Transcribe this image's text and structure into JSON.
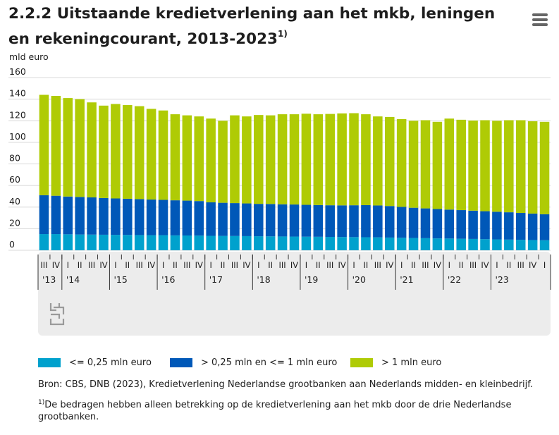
{
  "title": {
    "text": "2.2.2 Uitstaande kredietverlening aan het mkb, leningen en rekeningcourant, 2013-2023",
    "sup": "1)"
  },
  "menu_icon": "hamburger-menu-icon",
  "colors": {
    "small": "#00a1cd",
    "medium": "#0058b8",
    "large": "#afcb05",
    "grid": "#d8d8d8",
    "axis_band": "#ececec"
  },
  "chart_data": {
    "type": "bar",
    "stacked": true,
    "ylabel": "mld euro",
    "ylim": [
      0,
      160
    ],
    "yticks": [
      0,
      20,
      40,
      60,
      80,
      100,
      120,
      140,
      160
    ],
    "grid": true,
    "legend_position": "bottom",
    "categories": [
      "III",
      "IV",
      "I",
      "II",
      "III",
      "IV",
      "I",
      "II",
      "III",
      "IV",
      "I",
      "II",
      "III",
      "IV",
      "I",
      "II",
      "III",
      "IV",
      "I",
      "II",
      "III",
      "IV",
      "I",
      "II",
      "III",
      "IV",
      "I",
      "II",
      "III",
      "IV",
      "I",
      "II",
      "III",
      "IV",
      "I",
      "II",
      "III",
      "IV",
      "I",
      "II",
      "III",
      "IV",
      "I"
    ],
    "year_labels": [
      {
        "label": "'13",
        "quarters": 2
      },
      {
        "label": "'14",
        "quarters": 4
      },
      {
        "label": "'15",
        "quarters": 4
      },
      {
        "label": "'16",
        "quarters": 4
      },
      {
        "label": "'17",
        "quarters": 4
      },
      {
        "label": "'18",
        "quarters": 4
      },
      {
        "label": "'19",
        "quarters": 4
      },
      {
        "label": "'20",
        "quarters": 4
      },
      {
        "label": "'21",
        "quarters": 4
      },
      {
        "label": "'22",
        "quarters": 4
      },
      {
        "label": "'23",
        "quarters": 1
      }
    ],
    "series": [
      {
        "name": "<= 0,25 mln euro",
        "color_key": "small",
        "values": [
          15,
          15,
          14.8,
          14.6,
          14.5,
          14.4,
          14.3,
          14.2,
          14.1,
          14,
          14,
          13.8,
          13.7,
          13.6,
          13.4,
          13.3,
          13.2,
          13.1,
          13,
          12.9,
          12.8,
          12.7,
          12.6,
          12.5,
          12.4,
          12.3,
          12.2,
          12.1,
          12,
          11.8,
          11.6,
          11.4,
          11.2,
          11,
          10.9,
          10.7,
          10.5,
          10.3,
          10.1,
          9.9,
          9.7,
          9.5,
          9.3
        ]
      },
      {
        "name": "> 0,25 mln en <= 1 mln euro",
        "color_key": "medium",
        "values": [
          36,
          35.5,
          35,
          34.8,
          34.5,
          34,
          33.7,
          33.5,
          33.3,
          33,
          32.7,
          32.5,
          32.3,
          32,
          31,
          30.7,
          30.5,
          30.3,
          30,
          30,
          29.8,
          29.7,
          29.5,
          29.4,
          29.3,
          29.3,
          29.5,
          29.7,
          29.5,
          29.2,
          28.6,
          28,
          27.6,
          27.2,
          26.8,
          26.5,
          26.2,
          25.9,
          25.6,
          25.3,
          24.9,
          24.5,
          24.1
        ]
      },
      {
        "name": "> 1 mln euro",
        "color_key": "large",
        "values": [
          93,
          92.5,
          91.2,
          90.6,
          88,
          85.6,
          87.5,
          86.8,
          86.1,
          84,
          82.8,
          79.7,
          79,
          78.4,
          77.6,
          76,
          81.3,
          80.6,
          82.3,
          82.1,
          83.4,
          83.6,
          84.4,
          84.1,
          84.6,
          85.2,
          85.3,
          84.2,
          82.5,
          82.5,
          81.3,
          80.6,
          81.7,
          80.8,
          84.3,
          83.7,
          83.5,
          84.3,
          84.3,
          85.3,
          85.9,
          85.5,
          85.6
        ]
      }
    ]
  },
  "legend": [
    {
      "label": "<= 0,25 mln euro",
      "color_key": "small"
    },
    {
      "label": "> 0,25 mln en <= 1 mln euro",
      "color_key": "medium"
    },
    {
      "label": "> 1 mln euro",
      "color_key": "large"
    }
  ],
  "source": "Bron: CBS, DNB (2023), Kredietverlening Nederlandse grootbanken aan Nederlands midden- en kleinbedrijf.",
  "footnote": {
    "sup": "1)",
    "text": "De bedragen hebben alleen betrekking op de kredietverlening aan het mkb door de drie Nederlandse grootbanken."
  }
}
